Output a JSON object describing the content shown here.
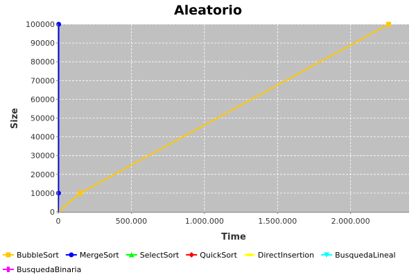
{
  "chart_data": {
    "type": "line",
    "title": "Aleatorio",
    "xlabel": "Time",
    "ylabel": "Size",
    "xlim": [
      0,
      2400000
    ],
    "ylim": [
      0,
      100000
    ],
    "x_ticks": [
      0,
      500000,
      1000000,
      1500000,
      2000000
    ],
    "x_tick_labels": [
      "0",
      "500.000",
      "1.000.000",
      "1.500.000",
      "2.000.000"
    ],
    "y_ticks": [
      0,
      10000,
      20000,
      30000,
      40000,
      50000,
      60000,
      70000,
      80000,
      90000,
      100000
    ],
    "y_tick_labels": [
      "0",
      "10000",
      "20000",
      "30000",
      "40000",
      "50000",
      "60000",
      "70000",
      "80000",
      "90000",
      "100000"
    ],
    "grid": true,
    "plot_background": "#c0c0c0",
    "legend_position": "bottom",
    "series": [
      {
        "name": "BubbleSort",
        "color": "#ffc800",
        "marker": "square",
        "points": [
          [
            0,
            0
          ],
          [
            150000,
            10000
          ],
          [
            2260000,
            100000
          ]
        ]
      },
      {
        "name": "MergeSort",
        "color": "#0000ff",
        "marker": "circle",
        "points": [
          [
            0,
            0
          ],
          [
            2000,
            10000
          ],
          [
            3000,
            100000
          ]
        ]
      },
      {
        "name": "SelectSort",
        "color": "#00ff00",
        "marker": "triangle-up",
        "points": []
      },
      {
        "name": "QuickSort",
        "color": "#ff0000",
        "marker": "diamond",
        "points": []
      },
      {
        "name": "DirectInsertion",
        "color": "#ffff00",
        "marker": "rect-h",
        "points": []
      },
      {
        "name": "BusquedaLineal",
        "color": "#00ffff",
        "marker": "triangle-down",
        "points": []
      },
      {
        "name": "BusquedaBinaria",
        "color": "#ff00ff",
        "marker": "rect-v",
        "points": []
      }
    ]
  }
}
